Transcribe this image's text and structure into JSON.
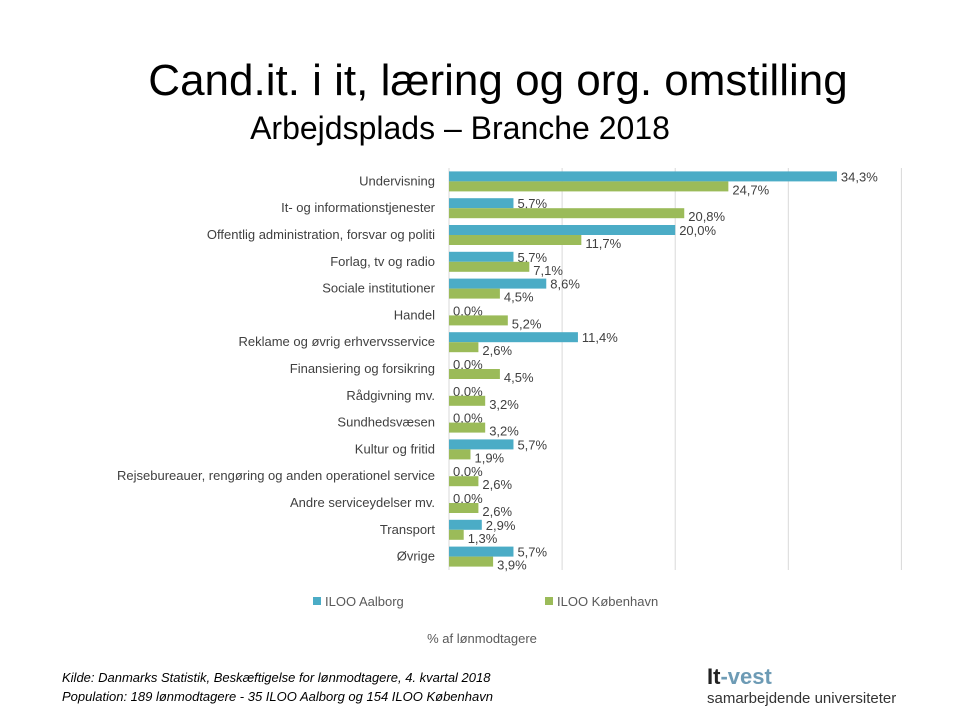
{
  "title": "Cand.it. i it, læring og org. omstilling",
  "subtitle": "Arbejdsplads – Branche 2018",
  "chart_data": {
    "type": "bar",
    "orientation": "horizontal",
    "xlabel": "% af lønmodtagere",
    "xlim": [
      0,
      40
    ],
    "grid": true,
    "legend_position": "bottom",
    "categories": [
      "Undervisning",
      "It- og informationstjenester",
      "Offentlig administration, forsvar og politi",
      "Forlag, tv og radio",
      "Sociale institutioner",
      "Handel",
      "Reklame og øvrig erhvervsservice",
      "Finansiering og forsikring",
      "Rådgivning mv.",
      "Sundhedsvæsen",
      "Kultur og fritid",
      "Rejsebureauer, rengøring og anden operationel service",
      "Andre serviceydelser  mv.",
      "Transport",
      "Øvrige"
    ],
    "series": [
      {
        "name": "ILOO Aalborg",
        "color": "#4bacc6",
        "values": [
          34.3,
          5.7,
          20.0,
          5.7,
          8.6,
          0.0,
          11.4,
          0.0,
          0.0,
          0.0,
          5.7,
          0.0,
          0.0,
          2.9,
          5.7
        ],
        "labels": [
          "34,3%",
          "5,7%",
          "20,0%",
          "5,7%",
          "8,6%",
          "0,0%",
          "11,4%",
          "0,0%",
          "0,0%",
          "0,0%",
          "5,7%",
          "0,0%",
          "0,0%",
          "2,9%",
          "5,7%"
        ]
      },
      {
        "name": "ILOO København",
        "color": "#9bbb59",
        "values": [
          24.7,
          20.8,
          11.7,
          7.1,
          4.5,
          5.2,
          2.6,
          4.5,
          3.2,
          3.2,
          1.9,
          2.6,
          2.6,
          1.3,
          3.9
        ],
        "labels": [
          "24,7%",
          "20,8%",
          "11,7%",
          "7,1%",
          "4,5%",
          "5,2%",
          "2,6%",
          "4,5%",
          "3,2%",
          "3,2%",
          "1,9%",
          "2,6%",
          "2,6%",
          "1,3%",
          "3,9%"
        ]
      }
    ]
  },
  "footer": {
    "source": "Kilde: Danmarks Statistik, Beskæftigelse for lønmodtagere, 4. kvartal 2018",
    "population": "Population: 189 lønmodtagere - 35 ILOO Aalborg og 154 ILOO København"
  },
  "logo": {
    "part1": "It",
    "part2": "-vest",
    "tagline": "samarbejdende universiteter"
  }
}
